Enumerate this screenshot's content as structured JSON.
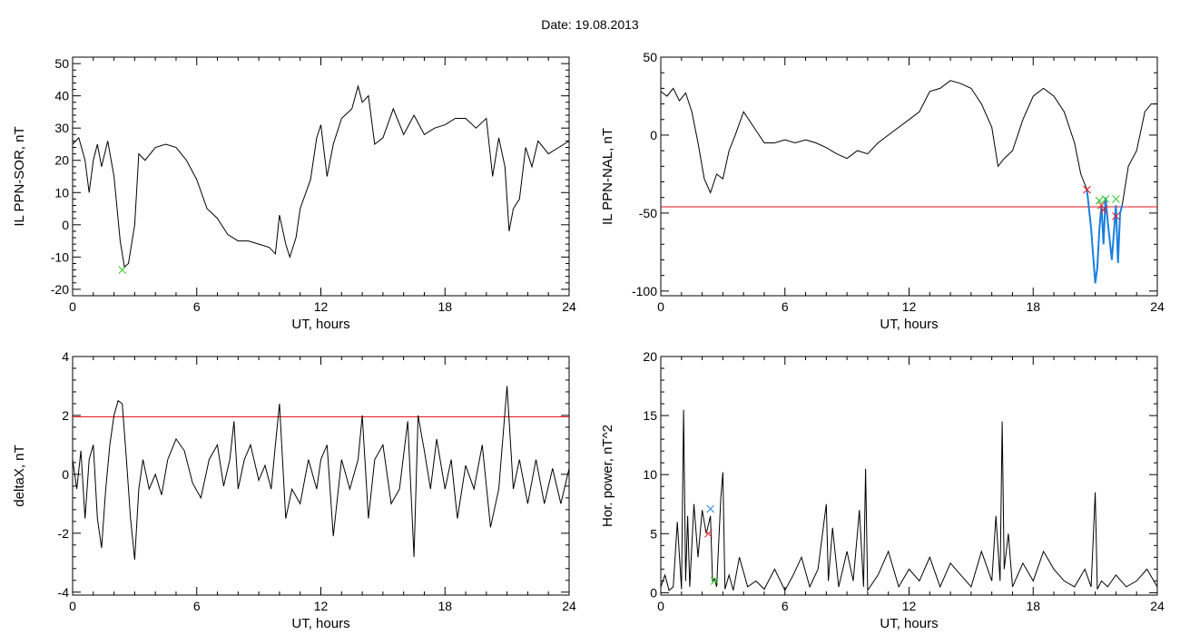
{
  "page_title": "Date:  19.08.2013",
  "colors": {
    "trace": "#000000",
    "threshold": "#e8141c",
    "selected": "#1a7fe0",
    "marker_red": "#e8141c",
    "marker_green": "#23c423",
    "marker_blue": "#1a7fe0"
  },
  "chart_data": [
    {
      "type": "line",
      "title": "",
      "xlabel": "UT, hours",
      "ylabel": "IL PPN-SOR, nT",
      "xlim": [
        0,
        24
      ],
      "ylim": [
        -22,
        52
      ],
      "xticks": [
        0,
        6,
        12,
        18,
        24
      ],
      "xtick_labels": [
        "0",
        "6",
        "12",
        "18",
        "24"
      ],
      "yticks": [
        -20,
        -10,
        0,
        10,
        20,
        30,
        40,
        50
      ],
      "ytick_labels": [
        "-20",
        "-10",
        "0",
        "10",
        "20",
        "30",
        "40",
        "50"
      ],
      "series": [
        {
          "x": [
            0,
            0.3,
            0.6,
            0.8,
            1.0,
            1.2,
            1.4,
            1.7,
            2.0,
            2.3,
            2.5,
            2.7,
            3.0,
            3.2,
            3.5,
            4.0,
            4.5,
            5.0,
            5.5,
            6.0,
            6.5,
            7.0,
            7.5,
            8.0,
            8.5,
            9.0,
            9.5,
            9.8,
            10.0,
            10.3,
            10.5,
            10.8,
            11.0,
            11.5,
            11.8,
            12.0,
            12.3,
            12.6,
            13.0,
            13.5,
            13.8,
            14.0,
            14.3,
            14.6,
            15.0,
            15.5,
            16.0,
            16.5,
            17.0,
            17.5,
            18.0,
            18.5,
            19.0,
            19.5,
            20.0,
            20.3,
            20.6,
            20.9,
            21.1,
            21.3,
            21.6,
            21.9,
            22.2,
            22.5,
            23.0,
            23.5,
            24
          ],
          "y": [
            25,
            27,
            20,
            10,
            20,
            25,
            18,
            26,
            15,
            -5,
            -13,
            -12,
            0,
            22,
            20,
            24,
            25,
            24,
            20,
            14,
            5,
            2,
            -3,
            -5,
            -5,
            -6,
            -7,
            -9,
            3,
            -6,
            -10,
            -4,
            5,
            14,
            27,
            31,
            15,
            25,
            33,
            36,
            43,
            38,
            40,
            25,
            27,
            36,
            28,
            34,
            28,
            30,
            31,
            33,
            33,
            30,
            33,
            15,
            27,
            18,
            -2,
            5,
            8,
            24,
            18,
            26,
            22,
            24,
            26
          ]
        }
      ],
      "annotations": [
        {
          "marker": "x",
          "color": "green",
          "x": 2.4,
          "y": -14
        }
      ]
    },
    {
      "type": "line",
      "title": "",
      "xlabel": "UT, hours",
      "ylabel": "IL PPN-NAL, nT",
      "xlim": [
        0,
        24
      ],
      "ylim": [
        -103,
        50
      ],
      "xticks": [
        0,
        6,
        12,
        18,
        24
      ],
      "xtick_labels": [
        "0",
        "6",
        "12",
        "18",
        "24"
      ],
      "yticks": [
        -100,
        -50,
        0,
        50
      ],
      "ytick_labels": [
        "-100",
        "-50",
        "0",
        "50"
      ],
      "threshold": -46,
      "series": [
        {
          "name": "main",
          "x": [
            0,
            0.3,
            0.6,
            0.9,
            1.2,
            1.5,
            1.8,
            2.1,
            2.4,
            2.7,
            3.0,
            3.3,
            3.6,
            4.0,
            4.5,
            5.0,
            5.5,
            6.0,
            6.5,
            7.0,
            7.5,
            8.0,
            8.5,
            9.0,
            9.5,
            10.0,
            10.5,
            11.0,
            11.5,
            12.0,
            12.5,
            13.0,
            13.5,
            14.0,
            14.5,
            15.0,
            15.5,
            16.0,
            16.3,
            16.6,
            17.0,
            17.5,
            18.0,
            18.5,
            19.0,
            19.5,
            20.0,
            20.3,
            20.6
          ],
          "y": [
            28,
            25,
            30,
            22,
            27,
            15,
            -5,
            -28,
            -37,
            -25,
            -28,
            -10,
            0,
            15,
            5,
            -5,
            -5,
            -3,
            -5,
            -3,
            -5,
            -8,
            -12,
            -15,
            -10,
            -12,
            -5,
            0,
            5,
            10,
            15,
            28,
            30,
            35,
            33,
            30,
            20,
            5,
            -20,
            -15,
            -10,
            10,
            25,
            30,
            25,
            15,
            -5,
            -25,
            -35
          ]
        },
        {
          "name": "tail",
          "x": [
            22.3,
            22.6,
            23.0,
            23.4,
            23.7,
            24
          ],
          "y": [
            -45,
            -20,
            -10,
            15,
            20,
            20
          ]
        }
      ],
      "selected_segment": {
        "x": [
          20.6,
          20.8,
          21.0,
          21.1,
          21.2,
          21.3,
          21.4,
          21.5,
          21.6,
          21.8,
          22.0,
          22.1,
          22.2,
          22.3
        ],
        "y": [
          -35,
          -60,
          -95,
          -85,
          -60,
          -45,
          -70,
          -40,
          -55,
          -80,
          -45,
          -82,
          -50,
          -45
        ]
      },
      "annotations": [
        {
          "marker": "x",
          "color": "red",
          "x": 20.6,
          "y": -35
        },
        {
          "marker": "x",
          "color": "red",
          "x": 21.3,
          "y": -45
        },
        {
          "marker": "x",
          "color": "red",
          "x": 21.4,
          "y": -48
        },
        {
          "marker": "x",
          "color": "green",
          "x": 21.2,
          "y": -42
        },
        {
          "marker": "x",
          "color": "green",
          "x": 21.5,
          "y": -41
        },
        {
          "marker": "x",
          "color": "green",
          "x": 22.0,
          "y": -41
        },
        {
          "marker": "x",
          "color": "red",
          "x": 22.0,
          "y": -52
        }
      ]
    },
    {
      "type": "line",
      "title": "",
      "xlabel": "UT, hours",
      "ylabel": "deltaX, nT",
      "xlim": [
        0,
        24
      ],
      "ylim": [
        -4.1,
        4
      ],
      "xticks": [
        0,
        6,
        12,
        18,
        24
      ],
      "xtick_labels": [
        "0",
        "6",
        "12",
        "18",
        "24"
      ],
      "yticks": [
        -4,
        -2,
        0,
        2,
        4
      ],
      "ytick_labels": [
        "-4",
        "-2",
        "0",
        "2",
        "4"
      ],
      "threshold": 1.95,
      "series": [
        {
          "x": [
            0,
            0.2,
            0.4,
            0.6,
            0.8,
            1.0,
            1.2,
            1.4,
            1.6,
            1.8,
            2.0,
            2.2,
            2.4,
            2.6,
            2.8,
            3.0,
            3.2,
            3.4,
            3.7,
            4.0,
            4.3,
            4.6,
            5.0,
            5.4,
            5.8,
            6.2,
            6.6,
            7.0,
            7.3,
            7.6,
            7.8,
            8.0,
            8.3,
            8.6,
            9.0,
            9.3,
            9.6,
            9.8,
            10.0,
            10.3,
            10.6,
            11.0,
            11.4,
            11.8,
            12.0,
            12.3,
            12.6,
            13.0,
            13.4,
            13.8,
            14.0,
            14.3,
            14.6,
            15.0,
            15.4,
            15.8,
            16.2,
            16.5,
            16.7,
            17.0,
            17.3,
            17.6,
            18.0,
            18.3,
            18.6,
            19.0,
            19.4,
            19.8,
            20.2,
            20.6,
            21.0,
            21.3,
            21.6,
            22.0,
            22.4,
            22.8,
            23.2,
            23.6,
            24
          ],
          "y": [
            0.5,
            -0.5,
            0.8,
            -1.5,
            0.5,
            1.0,
            -1.5,
            -2.5,
            -0.5,
            1.0,
            2.0,
            2.5,
            2.4,
            0.5,
            -1.5,
            -2.9,
            -0.5,
            0.5,
            -0.5,
            0,
            -0.7,
            0.5,
            1.2,
            0.8,
            -0.3,
            -0.8,
            0.5,
            1.0,
            -0.4,
            0.5,
            1.8,
            -0.5,
            0.5,
            1.0,
            -0.2,
            0.3,
            -0.5,
            1.0,
            2.4,
            -1.5,
            -0.5,
            -1.0,
            0.5,
            -0.5,
            0.5,
            1.0,
            -2.1,
            0.5,
            -0.5,
            0.5,
            2.0,
            -1.5,
            0.5,
            1.0,
            -1.0,
            -0.5,
            1.8,
            -2.8,
            2.0,
            0.8,
            -0.5,
            1.2,
            -0.5,
            0.5,
            -1.5,
            0.3,
            -0.5,
            1.0,
            -1.8,
            -0.5,
            3.0,
            -0.5,
            0.5,
            -1.0,
            0.5,
            -1.0,
            0.2,
            -1.0,
            0.2
          ]
        }
      ]
    },
    {
      "type": "line",
      "title": "",
      "xlabel": "UT, hours",
      "ylabel": "Hor. power, nT^2",
      "xlim": [
        0,
        24
      ],
      "ylim": [
        -0.2,
        20
      ],
      "xticks": [
        0,
        6,
        12,
        18,
        24
      ],
      "xtick_labels": [
        "0",
        "6",
        "12",
        "18",
        "24"
      ],
      "yticks": [
        0,
        5,
        10,
        15,
        20
      ],
      "ytick_labels": [
        "0",
        "5",
        "10",
        "15",
        "20"
      ],
      "series": [
        {
          "x": [
            0,
            0.2,
            0.4,
            0.6,
            0.8,
            1.0,
            1.1,
            1.2,
            1.3,
            1.4,
            1.6,
            1.8,
            2.0,
            2.2,
            2.4,
            2.5,
            2.6,
            2.7,
            2.9,
            3.0,
            3.1,
            3.3,
            3.5,
            3.8,
            4.2,
            4.6,
            5.0,
            5.5,
            6.0,
            6.4,
            6.8,
            7.2,
            7.6,
            8.0,
            8.1,
            8.3,
            8.6,
            9.0,
            9.3,
            9.6,
            9.8,
            9.9,
            10.0,
            10.5,
            11.0,
            11.5,
            12.0,
            12.5,
            13.0,
            13.5,
            14.0,
            14.5,
            15.0,
            15.5,
            16.0,
            16.2,
            16.4,
            16.5,
            16.6,
            16.8,
            17.0,
            17.5,
            18.0,
            18.5,
            19.0,
            19.5,
            20.0,
            20.5,
            20.8,
            21.0,
            21.1,
            21.3,
            21.6,
            22.0,
            22.5,
            23.0,
            23.5,
            24
          ],
          "y": [
            0.5,
            1.5,
            0.2,
            0.5,
            6.0,
            0.3,
            15.5,
            1.0,
            6.5,
            0.5,
            7.5,
            3.0,
            7.0,
            5.0,
            6.5,
            1.0,
            1.2,
            0.5,
            8.0,
            10.2,
            0.3,
            1.5,
            0.2,
            3.0,
            0.5,
            1.0,
            0.3,
            2.0,
            0.2,
            1.5,
            3.0,
            0.5,
            2.0,
            7.5,
            1.0,
            5.5,
            0.5,
            3.5,
            1.0,
            7.0,
            0.5,
            10.5,
            0.2,
            1.5,
            3.5,
            0.5,
            2.0,
            1.0,
            3.0,
            0.5,
            2.5,
            1.5,
            0.5,
            3.5,
            1.0,
            6.5,
            1.0,
            14.5,
            2.0,
            5.0,
            0.5,
            2.5,
            1.0,
            3.5,
            2.0,
            1.0,
            0.5,
            2.0,
            0.5,
            8.5,
            0.3,
            1.0,
            0.5,
            1.5,
            0.5,
            1.0,
            2.0,
            0.5
          ]
        }
      ],
      "annotations": [
        {
          "marker": "x",
          "color": "blue",
          "x": 2.4,
          "y": 7.1
        },
        {
          "marker": "x",
          "color": "red",
          "x": 2.3,
          "y": 5.0
        },
        {
          "marker": "x",
          "color": "green",
          "x": 2.6,
          "y": 1.0
        }
      ]
    }
  ]
}
